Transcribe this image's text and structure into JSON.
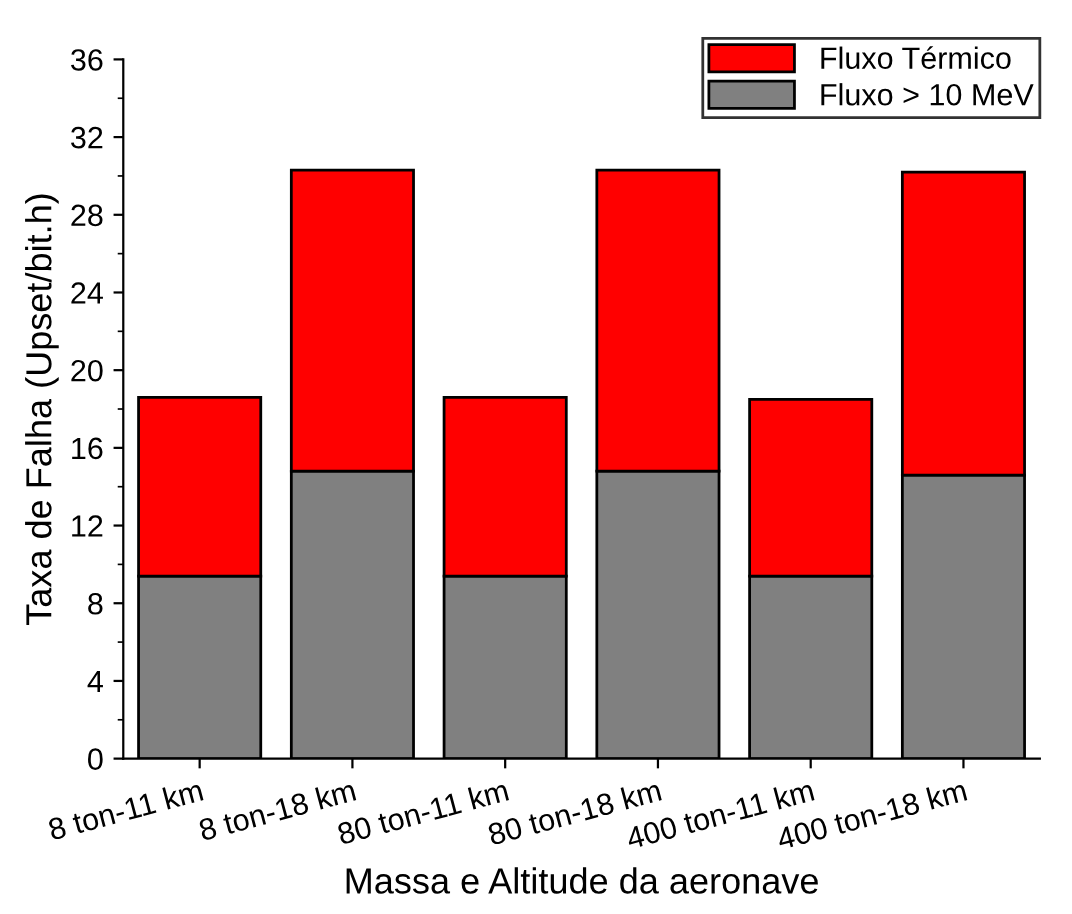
{
  "chart_data": {
    "type": "bar",
    "stacked": true,
    "xlabel": "Massa e Altitude da aeronave",
    "ylabel": "Taxa de Falha (Upset/bit.h)",
    "categories": [
      "8 ton-11 km",
      "8 ton-18 km",
      "80 ton-11 km",
      "80 ton-18 km",
      "400 ton-11 km",
      "400 ton-18 km"
    ],
    "series": [
      {
        "name": "Fluxo > 10 MeV",
        "color": "#808080",
        "values": [
          9.4,
          14.8,
          9.4,
          14.8,
          9.4,
          14.6
        ]
      },
      {
        "name": "Fluxo Térmico",
        "color": "#ff0000",
        "values": [
          9.2,
          15.5,
          9.2,
          15.5,
          9.1,
          15.6
        ]
      }
    ],
    "ylim": [
      0,
      36
    ],
    "yticks": [
      0,
      4,
      8,
      12,
      16,
      20,
      24,
      28,
      32,
      36
    ],
    "legend": "top right",
    "grid": false
  }
}
